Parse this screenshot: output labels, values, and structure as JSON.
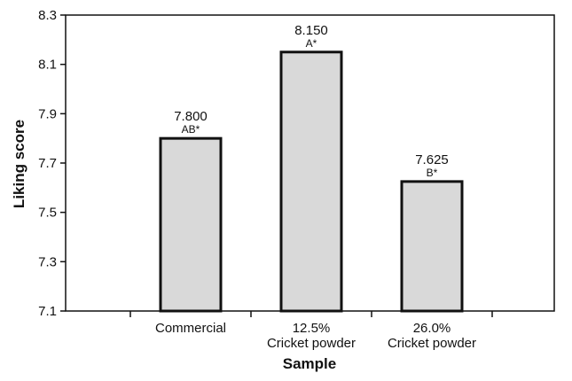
{
  "chart_data": {
    "type": "bar",
    "xlabel": "Sample",
    "ylabel": "Liking score",
    "ylim": [
      7.1,
      8.3
    ],
    "yticks": [
      "7.1",
      "7.3",
      "7.5",
      "7.7",
      "7.9",
      "8.1",
      "8.3"
    ],
    "grid": false,
    "categories": [
      {
        "lines": [
          "Commercial"
        ],
        "value": 7.8,
        "value_label": "7.800",
        "group": "AB*"
      },
      {
        "lines": [
          "12.5%",
          "Cricket powder"
        ],
        "value": 8.15,
        "value_label": "8.150",
        "group": "A*"
      },
      {
        "lines": [
          "26.0%",
          "Cricket powder"
        ],
        "value": 7.625,
        "value_label": "7.625",
        "group": "B*"
      }
    ],
    "colors": {
      "bar_fill": "#d9d9d9",
      "bar_stroke": "#111111",
      "axis": "#111111"
    }
  }
}
